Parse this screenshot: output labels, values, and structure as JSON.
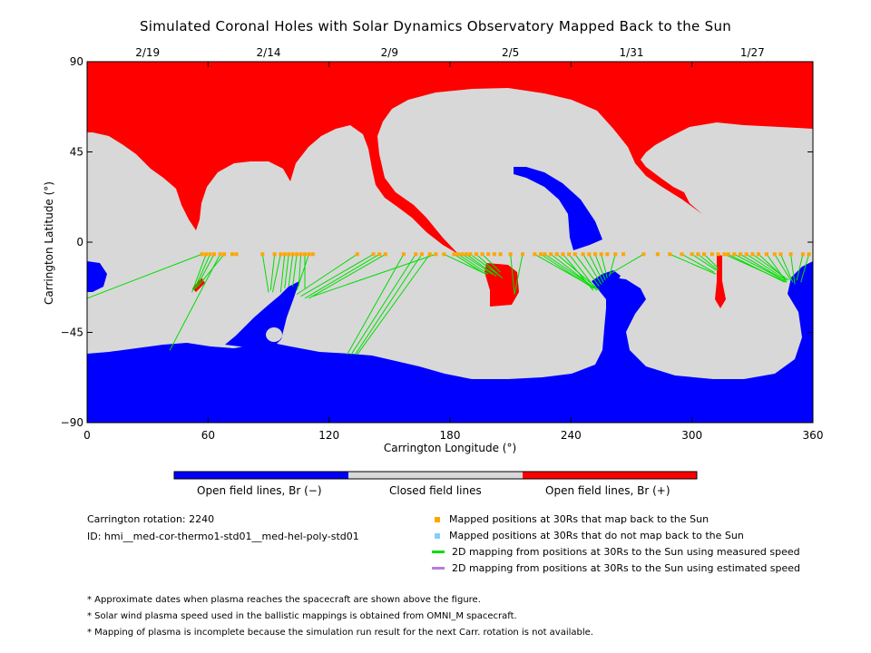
{
  "title": "Simulated Coronal Holes with Solar Dynamics Observatory Mapped Back to the Sun",
  "chart_data": {
    "type": "map",
    "xlabel": "Carrington Longitude (°)",
    "ylabel": "Carrington Latitude (°)",
    "xlim": [
      0,
      360
    ],
    "ylim": [
      -90,
      90
    ],
    "x_ticks": [
      0,
      60,
      120,
      180,
      240,
      300,
      360
    ],
    "y_ticks": [
      {
        "value": 90,
        "label": "90"
      },
      {
        "value": 45,
        "label": "45"
      },
      {
        "value": 0,
        "label": "0"
      },
      {
        "value": -45,
        "label": "−45"
      },
      {
        "value": -90,
        "label": "−90"
      }
    ],
    "top_date_ticks": [
      {
        "lon": 30,
        "label": "2/19"
      },
      {
        "lon": 90,
        "label": "2/14"
      },
      {
        "lon": 150,
        "label": "2/9"
      },
      {
        "lon": 210,
        "label": "2/5"
      },
      {
        "lon": 270,
        "label": "1/31"
      },
      {
        "lon": 330,
        "label": "1/27"
      }
    ],
    "colors": {
      "open_negative": "#0000ff",
      "closed": "#d8d8d8",
      "open_positive": "#ff0000",
      "mapped": "#ffa500",
      "measured_line": "#00dd00",
      "not_mapped": "#87cefa",
      "estimated_line": "#b57edc"
    },
    "mapped_points_lat": -6,
    "mapped_points_lon": [
      57,
      59,
      61,
      63,
      66,
      68,
      72,
      74,
      87,
      93,
      96,
      98,
      100,
      102,
      104,
      106,
      108,
      110,
      112,
      134,
      142,
      145,
      148,
      157,
      163,
      166,
      170,
      173,
      177,
      182,
      184,
      186,
      188,
      190,
      193,
      196,
      199,
      202,
      205,
      210,
      216,
      222,
      225,
      227,
      230,
      233,
      236,
      239,
      242,
      246,
      249,
      252,
      255,
      258,
      262,
      266,
      276,
      283,
      289,
      295,
      300,
      303,
      306,
      310,
      313,
      316,
      318,
      321,
      324,
      327,
      330,
      333,
      337,
      341,
      344,
      349,
      355,
      358
    ],
    "mapping_lines": [
      {
        "from": [
          57,
          -6
        ],
        "to": [
          0,
          -28
        ]
      },
      {
        "from": [
          59,
          -6
        ],
        "to": [
          52,
          -25
        ]
      },
      {
        "from": [
          61,
          -6
        ],
        "to": [
          53,
          -24
        ]
      },
      {
        "from": [
          63,
          -6
        ],
        "to": [
          54,
          -23
        ]
      },
      {
        "from": [
          66,
          -6
        ],
        "to": [
          41,
          -54
        ]
      },
      {
        "from": [
          68,
          -6
        ],
        "to": [
          55,
          -22
        ]
      },
      {
        "from": [
          87,
          -6
        ],
        "to": [
          90,
          -25
        ]
      },
      {
        "from": [
          93,
          -6
        ],
        "to": [
          91,
          -24
        ]
      },
      {
        "from": [
          96,
          -6
        ],
        "to": [
          92,
          -25
        ]
      },
      {
        "from": [
          98,
          -6
        ],
        "to": [
          96,
          -25
        ]
      },
      {
        "from": [
          100,
          -6
        ],
        "to": [
          98,
          -23
        ]
      },
      {
        "from": [
          102,
          -6
        ],
        "to": [
          100,
          -22
        ]
      },
      {
        "from": [
          104,
          -6
        ],
        "to": [
          102,
          -22
        ]
      },
      {
        "from": [
          106,
          -6
        ],
        "to": [
          105,
          -22
        ]
      },
      {
        "from": [
          108,
          -6
        ],
        "to": [
          108,
          -23
        ]
      },
      {
        "from": [
          110,
          -6
        ],
        "to": [
          104,
          -24
        ]
      },
      {
        "from": [
          134,
          -6
        ],
        "to": [
          104,
          -26
        ]
      },
      {
        "from": [
          142,
          -6
        ],
        "to": [
          106,
          -27
        ]
      },
      {
        "from": [
          145,
          -6
        ],
        "to": [
          108,
          -28
        ]
      },
      {
        "from": [
          148,
          -6
        ],
        "to": [
          110,
          -28
        ]
      },
      {
        "from": [
          157,
          -6
        ],
        "to": [
          129,
          -56
        ]
      },
      {
        "from": [
          163,
          -6
        ],
        "to": [
          131,
          -56
        ]
      },
      {
        "from": [
          166,
          -6
        ],
        "to": [
          133,
          -56
        ]
      },
      {
        "from": [
          170,
          -6
        ],
        "to": [
          134,
          -56
        ]
      },
      {
        "from": [
          173,
          -6
        ],
        "to": [
          112,
          -27
        ]
      },
      {
        "from": [
          177,
          -6
        ],
        "to": [
          198,
          -16
        ]
      },
      {
        "from": [
          182,
          -6
        ],
        "to": [
          196,
          -15
        ]
      },
      {
        "from": [
          184,
          -6
        ],
        "to": [
          199,
          -16
        ]
      },
      {
        "from": [
          186,
          -6
        ],
        "to": [
          201,
          -16
        ]
      },
      {
        "from": [
          188,
          -6
        ],
        "to": [
          203,
          -17
        ]
      },
      {
        "from": [
          190,
          -6
        ],
        "to": [
          205,
          -17
        ]
      },
      {
        "from": [
          193,
          -6
        ],
        "to": [
          206,
          -18
        ]
      },
      {
        "from": [
          196,
          -6
        ],
        "to": [
          205,
          -15
        ]
      },
      {
        "from": [
          210,
          -6
        ],
        "to": [
          212,
          -26
        ]
      },
      {
        "from": [
          216,
          -6
        ],
        "to": [
          212,
          -26
        ]
      },
      {
        "from": [
          222,
          -6
        ],
        "to": [
          250,
          -22
        ]
      },
      {
        "from": [
          225,
          -6
        ],
        "to": [
          251,
          -23
        ]
      },
      {
        "from": [
          227,
          -6
        ],
        "to": [
          252,
          -23
        ]
      },
      {
        "from": [
          230,
          -6
        ],
        "to": [
          253,
          -24
        ]
      },
      {
        "from": [
          233,
          -6
        ],
        "to": [
          254,
          -24
        ]
      },
      {
        "from": [
          236,
          -6
        ],
        "to": [
          251,
          -24
        ]
      },
      {
        "from": [
          239,
          -6
        ],
        "to": [
          252,
          -23
        ]
      },
      {
        "from": [
          242,
          -6
        ],
        "to": [
          254,
          -22
        ]
      },
      {
        "from": [
          246,
          -6
        ],
        "to": [
          255,
          -21
        ]
      },
      {
        "from": [
          249,
          -6
        ],
        "to": [
          256,
          -20
        ]
      },
      {
        "from": [
          252,
          -6
        ],
        "to": [
          257,
          -19
        ]
      },
      {
        "from": [
          255,
          -6
        ],
        "to": [
          258,
          -18
        ]
      },
      {
        "from": [
          262,
          -6
        ],
        "to": [
          259,
          -17
        ]
      },
      {
        "from": [
          276,
          -6
        ],
        "to": [
          259,
          -16
        ]
      },
      {
        "from": [
          289,
          -6
        ],
        "to": [
          312,
          -16
        ]
      },
      {
        "from": [
          295,
          -6
        ],
        "to": [
          311,
          -15
        ]
      },
      {
        "from": [
          300,
          -6
        ],
        "to": [
          312,
          -14
        ]
      },
      {
        "from": [
          303,
          -6
        ],
        "to": [
          313,
          -14
        ]
      },
      {
        "from": [
          306,
          -6
        ],
        "to": [
          313,
          -13
        ]
      },
      {
        "from": [
          316,
          -6
        ],
        "to": [
          347,
          -20
        ]
      },
      {
        "from": [
          318,
          -6
        ],
        "to": [
          346,
          -20
        ]
      },
      {
        "from": [
          321,
          -6
        ],
        "to": [
          344,
          -18
        ]
      },
      {
        "from": [
          324,
          -6
        ],
        "to": [
          346,
          -19
        ]
      },
      {
        "from": [
          327,
          -6
        ],
        "to": [
          347,
          -19
        ]
      },
      {
        "from": [
          330,
          -6
        ],
        "to": [
          348,
          -19
        ]
      },
      {
        "from": [
          333,
          -6
        ],
        "to": [
          346,
          -18
        ]
      },
      {
        "from": [
          337,
          -6
        ],
        "to": [
          347,
          -20
        ]
      },
      {
        "from": [
          341,
          -6
        ],
        "to": [
          349,
          -19
        ]
      },
      {
        "from": [
          344,
          -6
        ],
        "to": [
          350,
          -20
        ]
      },
      {
        "from": [
          349,
          -6
        ],
        "to": [
          351,
          -21
        ]
      },
      {
        "from": [
          355,
          -6
        ],
        "to": [
          352,
          -19
        ]
      },
      {
        "from": [
          358,
          -6
        ],
        "to": [
          354,
          -20
        ]
      }
    ]
  },
  "colorbar": {
    "labels": [
      "Open field lines, Br (−)",
      "Closed field lines",
      "Open field lines, Br (+)"
    ]
  },
  "info": {
    "rotation": "Carrington rotation: 2240",
    "id": "ID: hmi__med-cor-thermo1-std01__med-hel-poly-std01"
  },
  "legend": [
    {
      "type": "square",
      "color": "#ffa500",
      "label": "Mapped positions at 30Rs that map back to the Sun"
    },
    {
      "type": "square",
      "color": "#87cefa",
      "label": "Mapped positions at 30Rs that do not map back to the Sun"
    },
    {
      "type": "line",
      "color": "#00dd00",
      "label": "2D mapping from positions at 30Rs to the Sun using measured speed"
    },
    {
      "type": "line",
      "color": "#b57edc",
      "label": "2D mapping from positions at 30Rs to the Sun using estimated speed"
    }
  ],
  "notes": [
    "* Approximate dates when plasma reaches the spacecraft are shown above the figure.",
    "* Solar wind plasma speed used in the ballistic mappings is obtained from OMNI_M spacecraft.",
    "* Mapping of plasma is incomplete because the simulation run result for the next Carr. rotation is not available."
  ]
}
